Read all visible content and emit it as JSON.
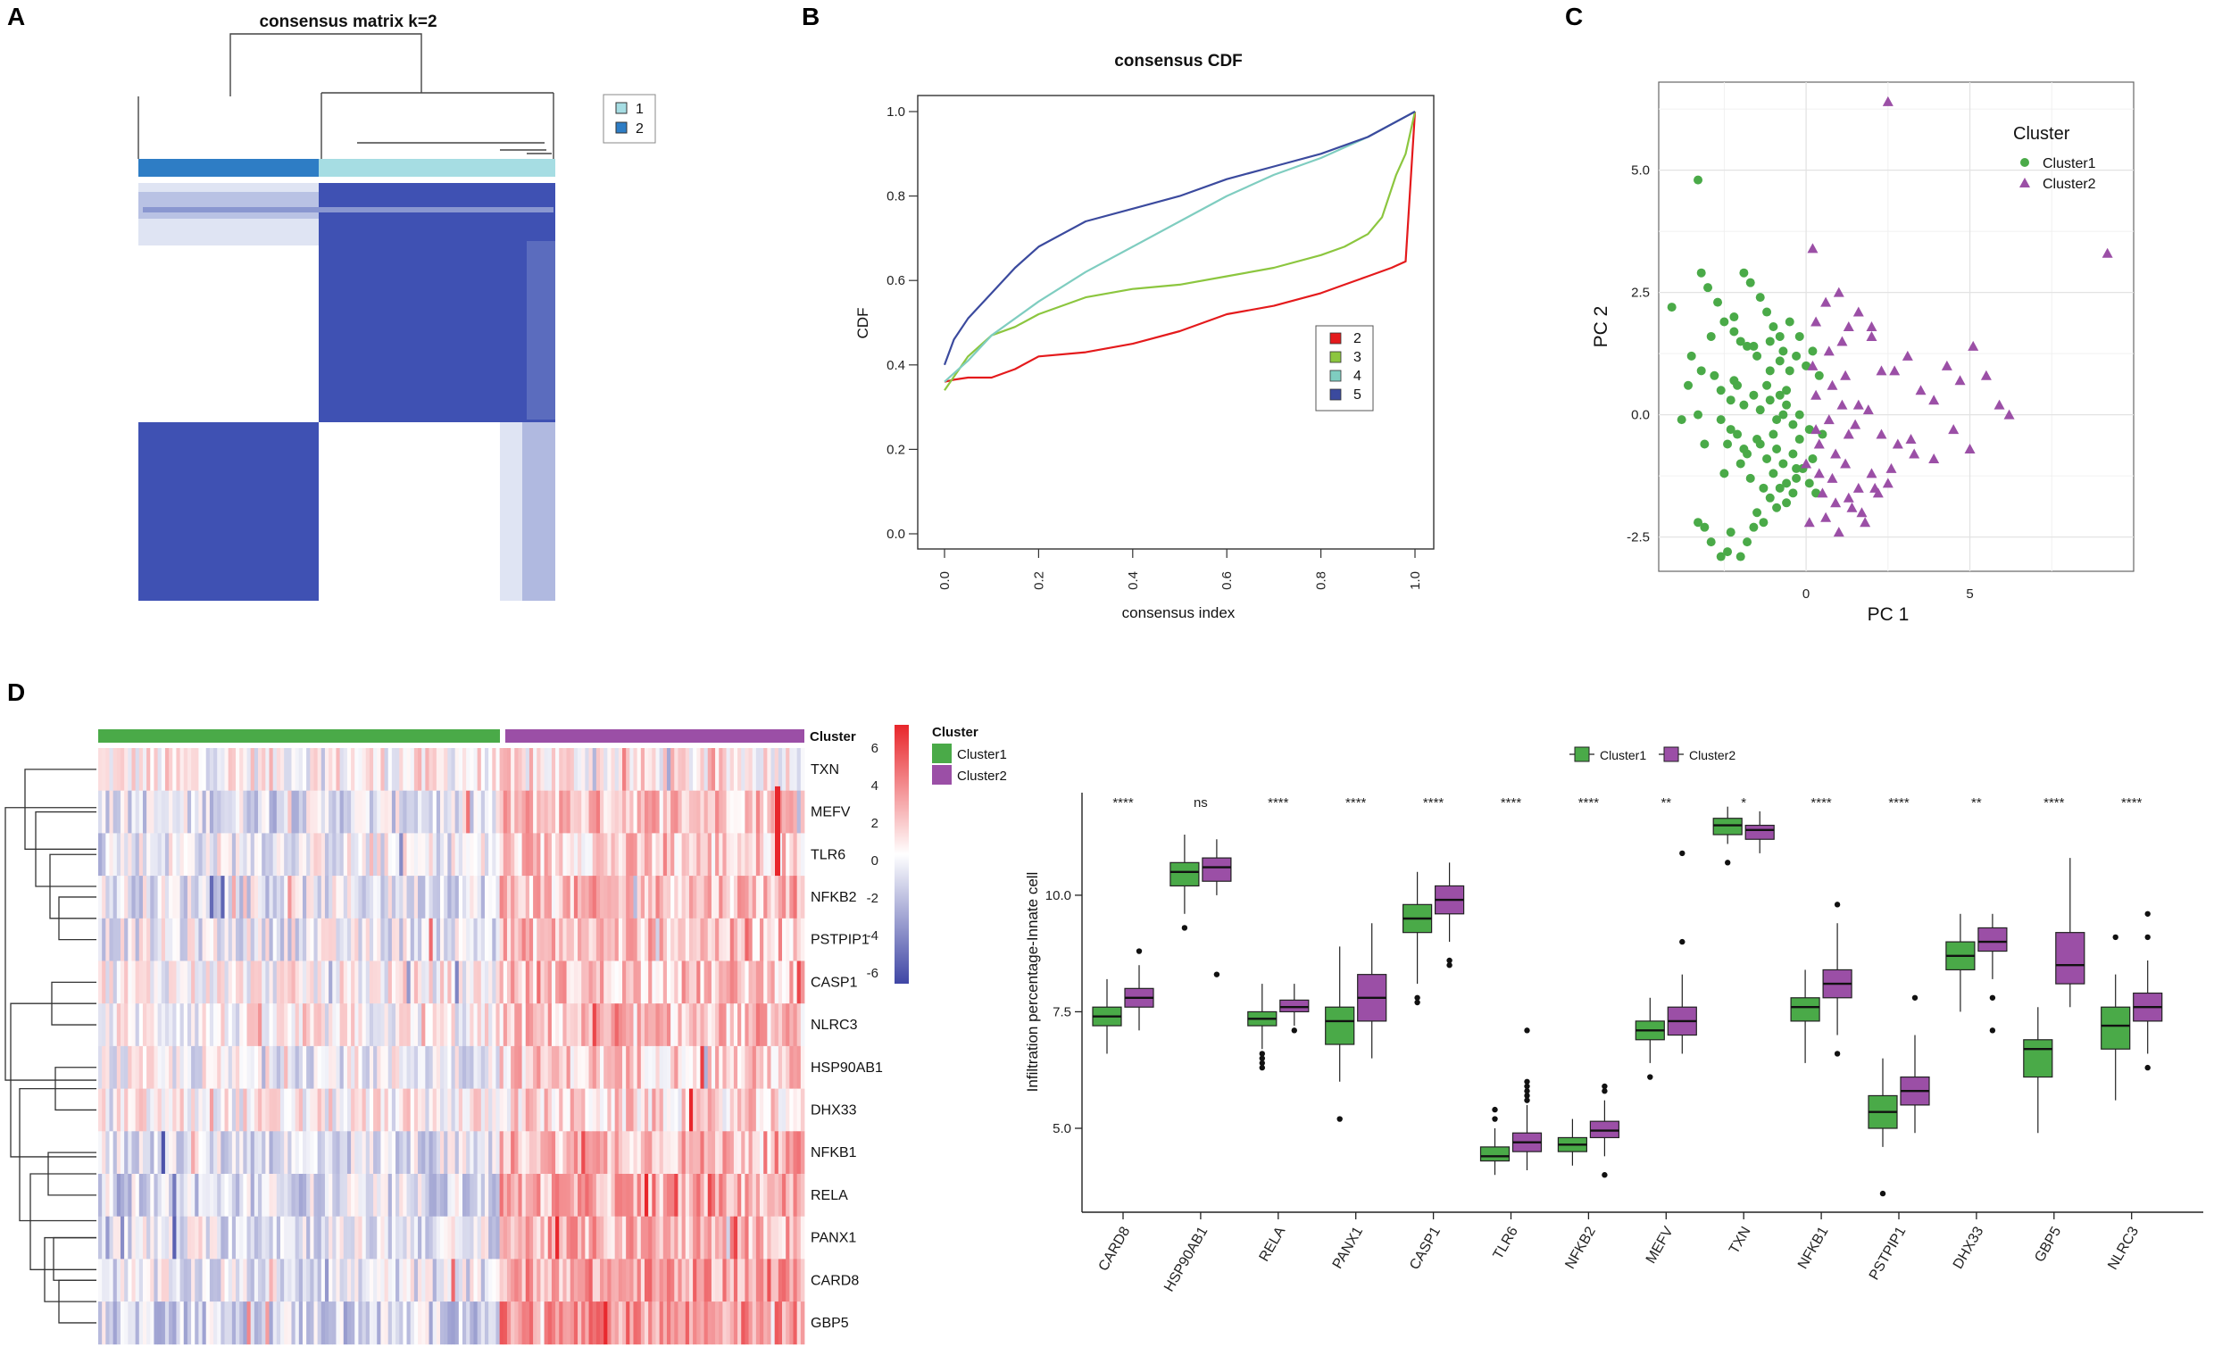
{
  "panels": {
    "a": "A",
    "b": "B",
    "c": "C",
    "d": "D"
  },
  "colors": {
    "heat_blue": "#3f51b3",
    "heat_light": "#dfe4f3",
    "anno_cluster1": "#2e7dc5",
    "anno_cluster2": "#a6dde3",
    "cluster1": "#4aaa48",
    "cluster2": "#9b4fa6",
    "cdf_2": "#e41a1c",
    "cdf_3": "#8cc63f",
    "cdf_4": "#7fcdc0",
    "cdf_5": "#3b4a9e",
    "expr_high": "#e8262b",
    "expr_low": "#3f46a5"
  },
  "consensus_matrix": {
    "title": "consensus matrix k=2",
    "legend": [
      {
        "label": "1",
        "color": "#a6dde3"
      },
      {
        "label": "2",
        "color": "#2e7dc5"
      }
    ]
  },
  "chart_data": [
    {
      "type": "line",
      "title": "consensus CDF",
      "xlabel": "consensus index",
      "ylabel": "CDF",
      "xlim": [
        0,
        1
      ],
      "ylim": [
        0,
        1
      ],
      "xticks": [
        "0.0",
        "0.2",
        "0.4",
        "0.6",
        "0.8",
        "1.0"
      ],
      "yticks": [
        "0.0",
        "0.2",
        "0.4",
        "0.6",
        "0.8",
        "1.0"
      ],
      "series": [
        {
          "name": "2",
          "color": "#e41a1c",
          "x": [
            0,
            0.02,
            0.05,
            0.1,
            0.15,
            0.2,
            0.3,
            0.4,
            0.5,
            0.6,
            0.7,
            0.8,
            0.85,
            0.9,
            0.95,
            0.98,
            1.0
          ],
          "y": [
            0.36,
            0.365,
            0.37,
            0.37,
            0.39,
            0.42,
            0.43,
            0.45,
            0.48,
            0.52,
            0.54,
            0.57,
            0.59,
            0.61,
            0.63,
            0.645,
            1.0
          ]
        },
        {
          "name": "3",
          "color": "#8cc63f",
          "x": [
            0,
            0.05,
            0.1,
            0.15,
            0.2,
            0.3,
            0.4,
            0.5,
            0.6,
            0.7,
            0.8,
            0.85,
            0.9,
            0.93,
            0.96,
            0.98,
            1.0
          ],
          "y": [
            0.34,
            0.42,
            0.47,
            0.49,
            0.52,
            0.56,
            0.58,
            0.59,
            0.61,
            0.63,
            0.66,
            0.68,
            0.71,
            0.75,
            0.85,
            0.9,
            1.0
          ]
        },
        {
          "name": "4",
          "color": "#7fcdc0",
          "x": [
            0,
            0.05,
            0.1,
            0.2,
            0.3,
            0.4,
            0.5,
            0.6,
            0.7,
            0.8,
            0.9,
            1.0
          ],
          "y": [
            0.36,
            0.41,
            0.47,
            0.55,
            0.62,
            0.68,
            0.74,
            0.8,
            0.85,
            0.89,
            0.94,
            1.0
          ]
        },
        {
          "name": "5",
          "color": "#3b4a9e",
          "x": [
            0,
            0.02,
            0.05,
            0.1,
            0.15,
            0.2,
            0.3,
            0.4,
            0.5,
            0.6,
            0.7,
            0.8,
            0.9,
            1.0
          ],
          "y": [
            0.4,
            0.46,
            0.51,
            0.57,
            0.63,
            0.68,
            0.74,
            0.77,
            0.8,
            0.84,
            0.87,
            0.9,
            0.94,
            1.0
          ]
        }
      ],
      "legend": [
        "2",
        "3",
        "4",
        "5"
      ],
      "legend_position": "center-right"
    },
    {
      "type": "scatter",
      "xlabel": "PC 1",
      "ylabel": "PC 2",
      "xlim": [
        -4.5,
        10
      ],
      "ylim": [
        -3.2,
        6.8
      ],
      "xticks": [
        0,
        5
      ],
      "yticks": [
        -2.5,
        0.0,
        2.5,
        5.0
      ],
      "ytick_labels": [
        "-2.5",
        "0.0",
        "2.5",
        "5.0"
      ],
      "legend_title": "Cluster",
      "legend_position": "top-right",
      "series": [
        {
          "name": "Cluster1",
          "shape": "circle",
          "color": "#4aaa48",
          "x": [
            -3.3,
            -4.1,
            -3.2,
            -3.6,
            -3.8,
            -3.3,
            -3.1,
            -2.9,
            -2.6,
            -2.4,
            -2.3,
            -2.0,
            -1.8,
            -1.6,
            -1.5,
            -1.3,
            -1.1,
            -0.9,
            -0.8,
            -0.6,
            -0.4,
            -0.3,
            -0.1,
            0.1,
            0.3,
            -3.0,
            -2.7,
            -2.5,
            -2.2,
            -2.0,
            -1.9,
            -1.7,
            -1.4,
            -1.2,
            -1.0,
            -0.8,
            -0.7,
            -0.5,
            -0.3,
            -0.2,
            0.0,
            0.2,
            0.4,
            -3.5,
            -3.2,
            -2.8,
            -2.6,
            -2.3,
            -2.1,
            -1.9,
            -1.6,
            -1.4,
            -1.1,
            -0.9,
            -0.6,
            -0.4,
            -0.2,
            0.1,
            0.5,
            -2.4,
            -2.1,
            -1.8,
            -1.5,
            -1.2,
            -0.9,
            -0.7,
            -0.4,
            -0.1,
            0.2,
            -3.3,
            -3.1,
            -2.5,
            -2.0,
            -1.7,
            -1.3,
            -1.0,
            -0.6,
            -0.3,
            -2.2,
            -1.8,
            -1.5,
            -1.1,
            -0.8,
            -0.5,
            -2.6,
            -2.3,
            -1.9,
            -1.4,
            -1.0,
            -0.6,
            -1.2,
            -0.8,
            -2.9,
            -2.2,
            -1.6,
            -1.1,
            -0.7,
            -0.2
          ],
          "y": [
            4.8,
            2.2,
            2.9,
            0.6,
            -0.1,
            -2.2,
            -2.3,
            -2.6,
            -2.9,
            -2.8,
            -2.4,
            -2.9,
            -2.6,
            -2.3,
            -2.0,
            -2.2,
            -1.7,
            -1.9,
            -1.5,
            -1.8,
            -1.6,
            -1.3,
            -1.1,
            -1.4,
            -1.6,
            2.6,
            2.3,
            1.9,
            2.0,
            1.5,
            2.9,
            2.7,
            2.4,
            2.1,
            1.8,
            1.6,
            1.3,
            1.9,
            1.2,
            1.6,
            1.0,
            1.3,
            0.8,
            1.2,
            0.9,
            0.8,
            0.5,
            0.3,
            0.6,
            0.2,
            0.4,
            0.1,
            0.3,
            -0.1,
            0.2,
            -0.2,
            0.0,
            -0.3,
            -0.4,
            -0.6,
            -0.4,
            -0.8,
            -0.5,
            -0.9,
            -0.7,
            -1.0,
            -0.8,
            -1.1,
            -0.9,
            0.0,
            -0.6,
            -1.2,
            -1.0,
            -1.3,
            -1.5,
            -1.2,
            -1.4,
            -1.1,
            0.7,
            1.4,
            1.2,
            1.5,
            1.1,
            0.9,
            -0.1,
            -0.3,
            -0.7,
            -0.6,
            -0.4,
            0.5,
            0.6,
            0.4,
            1.6,
            1.7,
            1.4,
            0.9,
            0.0,
            -0.5
          ]
        },
        {
          "name": "Cluster2",
          "shape": "triangle",
          "color": "#9b4fa6",
          "x": [
            2.5,
            9.2,
            0.2,
            0.6,
            1.0,
            1.3,
            1.6,
            2.0,
            2.3,
            2.7,
            3.1,
            3.5,
            3.9,
            4.3,
            4.7,
            5.1,
            5.5,
            5.9,
            6.2,
            0.3,
            0.7,
            1.1,
            1.5,
            1.9,
            2.3,
            2.8,
            3.3,
            3.9,
            4.5,
            5.0,
            0.0,
            0.4,
            0.8,
            1.2,
            1.6,
            2.0,
            2.5,
            0.5,
            0.9,
            1.3,
            1.7,
            2.1,
            2.6,
            3.2,
            0.1,
            0.6,
            1.0,
            1.4,
            1.8,
            2.2,
            0.3,
            0.8,
            1.2,
            1.6,
            0.4,
            0.9,
            1.3,
            0.2,
            0.7,
            1.1,
            2.0,
            0.3
          ],
          "y": [
            6.4,
            3.3,
            3.4,
            2.3,
            2.5,
            1.8,
            2.1,
            1.6,
            0.9,
            0.9,
            1.2,
            0.5,
            0.3,
            1.0,
            0.7,
            1.4,
            0.8,
            0.2,
            0.0,
            -0.3,
            -0.1,
            0.2,
            -0.2,
            0.1,
            -0.4,
            -0.6,
            -0.8,
            -0.9,
            -0.3,
            -0.7,
            -1.0,
            -1.2,
            -1.3,
            -1.0,
            -1.5,
            -1.2,
            -1.4,
            -1.6,
            -1.8,
            -1.7,
            -2.0,
            -1.5,
            -1.1,
            -0.5,
            -2.2,
            -2.1,
            -2.4,
            -1.9,
            -2.2,
            -1.6,
            0.4,
            0.6,
            0.8,
            0.2,
            -0.6,
            -0.8,
            -0.4,
            1.0,
            1.3,
            1.5,
            1.8,
            1.9
          ]
        }
      ]
    },
    {
      "type": "boxplot",
      "ylabel": "Infiltration percentage-Innate cell",
      "ylim": [
        3.2,
        12.2
      ],
      "yticks": [
        5.0,
        7.5,
        10.0
      ],
      "ytick_labels": [
        "5.0",
        "7.5",
        "10.0"
      ],
      "legend": [
        "Cluster1",
        "Cluster2"
      ],
      "legend_position": "top",
      "categories": [
        "CARD8",
        "HSP90AB1",
        "RELA",
        "PANX1",
        "CASP1",
        "TLR6",
        "NFKB2",
        "MEFV",
        "TXN",
        "NFKB1",
        "PSTPIP1",
        "DHX33",
        "GBP5",
        "NLRC3"
      ],
      "significance": [
        "****",
        "ns",
        "****",
        "****",
        "****",
        "****",
        "****",
        "**",
        "*",
        "****",
        "****",
        "**",
        "****",
        "****"
      ],
      "series": [
        {
          "name": "Cluster1",
          "boxes": [
            [
              6.6,
              7.2,
              7.4,
              7.6,
              8.2
            ],
            [
              9.6,
              10.2,
              10.5,
              10.7,
              11.3
            ],
            [
              6.7,
              7.2,
              7.35,
              7.5,
              8.1
            ],
            [
              6.0,
              6.8,
              7.3,
              7.6,
              8.9
            ],
            [
              8.1,
              9.2,
              9.5,
              9.8,
              10.5
            ],
            [
              4.0,
              4.3,
              4.4,
              4.6,
              5.0
            ],
            [
              4.2,
              4.5,
              4.65,
              4.8,
              5.2
            ],
            [
              6.4,
              6.9,
              7.1,
              7.3,
              7.8
            ],
            [
              11.1,
              11.3,
              11.5,
              11.65,
              11.9
            ],
            [
              6.4,
              7.3,
              7.6,
              7.8,
              8.4
            ],
            [
              4.6,
              5.0,
              5.35,
              5.7,
              6.5
            ],
            [
              7.5,
              8.4,
              8.7,
              9.0,
              9.6
            ],
            [
              4.9,
              6.1,
              6.7,
              6.9,
              7.6
            ],
            [
              5.6,
              6.7,
              7.2,
              7.6,
              8.3
            ]
          ],
          "outliers": [
            [],
            [
              9.3
            ],
            [
              6.3,
              6.4,
              6.5,
              6.6
            ],
            [
              5.2
            ],
            [
              7.7,
              7.8
            ],
            [
              5.2,
              5.4
            ],
            [],
            [
              6.1
            ],
            [
              10.7
            ],
            [],
            [
              3.6
            ],
            [],
            [],
            [
              9.1
            ]
          ]
        },
        {
          "name": "Cluster2",
          "boxes": [
            [
              7.1,
              7.6,
              7.8,
              8.0,
              8.5
            ],
            [
              10.0,
              10.3,
              10.6,
              10.8,
              11.2
            ],
            [
              7.2,
              7.5,
              7.6,
              7.75,
              8.1
            ],
            [
              6.5,
              7.3,
              7.8,
              8.3,
              9.4
            ],
            [
              9.0,
              9.6,
              9.9,
              10.2,
              10.7
            ],
            [
              4.1,
              4.5,
              4.7,
              4.9,
              5.5
            ],
            [
              4.4,
              4.8,
              4.95,
              5.15,
              5.6
            ],
            [
              6.6,
              7.0,
              7.3,
              7.6,
              8.3
            ],
            [
              10.9,
              11.2,
              11.4,
              11.5,
              11.8
            ],
            [
              7.0,
              7.8,
              8.1,
              8.4,
              9.4
            ],
            [
              4.9,
              5.5,
              5.8,
              6.1,
              7.0
            ],
            [
              8.2,
              8.8,
              9.0,
              9.3,
              9.6
            ],
            [
              7.6,
              8.1,
              8.5,
              9.2,
              10.8
            ],
            [
              6.6,
              7.3,
              7.6,
              7.9,
              8.6
            ]
          ],
          "outliers": [
            [
              8.8
            ],
            [
              8.3
            ],
            [
              7.1
            ],
            [],
            [
              8.5,
              8.6
            ],
            [
              5.6,
              5.7,
              5.8,
              5.9,
              6.0,
              7.1
            ],
            [
              4.0,
              5.8,
              5.9
            ],
            [
              9.0,
              10.9
            ],
            [],
            [
              6.6,
              9.8
            ],
            [
              7.8
            ],
            [
              7.1,
              7.8
            ],
            [],
            [
              6.3,
              9.1,
              9.6
            ]
          ]
        }
      ]
    }
  ],
  "heatmap": {
    "annotation_label": "Cluster",
    "legend_title": "Cluster",
    "legend_items": [
      "Cluster1",
      "Cluster2"
    ],
    "colorbar_ticks": [
      "6",
      "4",
      "2",
      "0",
      "-2",
      "-4",
      "-6"
    ],
    "genes": [
      "TXN",
      "MEFV",
      "TLR6",
      "NFKB2",
      "PSTPIP1",
      "CASP1",
      "NLRC3",
      "HSP90AB1",
      "DHX33",
      "NFKB1",
      "RELA",
      "PANX1",
      "CARD8",
      "GBP5"
    ],
    "group_bias": [
      [
        0.1,
        0.15
      ],
      [
        -0.25,
        0.55
      ],
      [
        -0.1,
        0.4
      ],
      [
        -0.2,
        0.55
      ],
      [
        -0.15,
        0.5
      ],
      [
        0.05,
        0.5
      ],
      [
        0.0,
        0.45
      ],
      [
        -0.1,
        0.4
      ],
      [
        0.05,
        0.3
      ],
      [
        -0.25,
        0.6
      ],
      [
        -0.3,
        0.65
      ],
      [
        -0.2,
        0.6
      ],
      [
        -0.2,
        0.75
      ],
      [
        -0.35,
        0.85
      ]
    ]
  }
}
